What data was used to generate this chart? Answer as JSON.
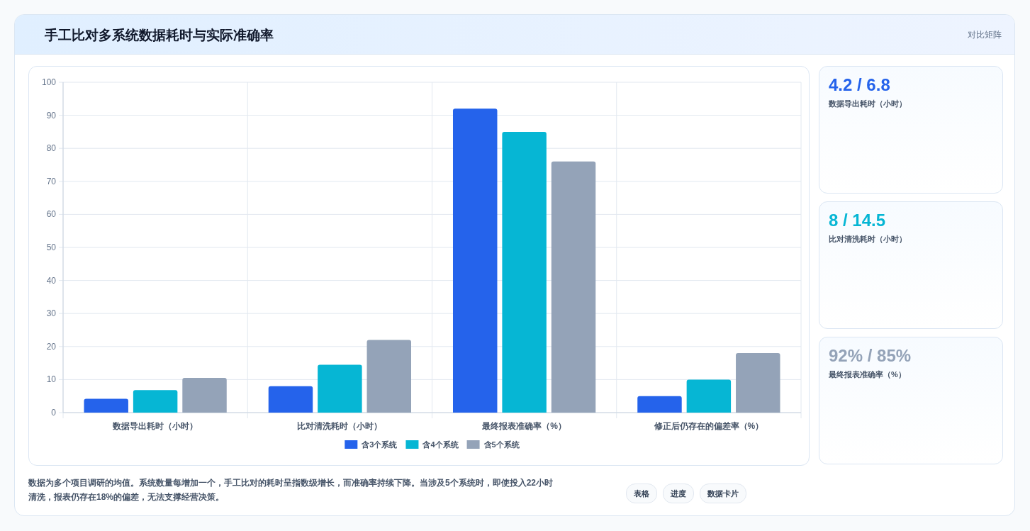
{
  "chart_data": [
    {
      "type": "bar",
      "title": "手工比对多系统数据耗时与实际准确率",
      "categories": [
        "数据导出耗时（小时）",
        "比对清洗耗时（小时）",
        "最终报表准确率（%）",
        "修正后仍存在的偏差率（%）"
      ],
      "series": [
        {
          "name": "含3个系统",
          "color": "#2563eb",
          "values": [
            4.2,
            8,
            92,
            5
          ]
        },
        {
          "name": "含4个系统",
          "color": "#06b6d4",
          "values": [
            6.8,
            14.5,
            85,
            10
          ]
        },
        {
          "name": "含5个系统",
          "color": "#94a3b8",
          "values": [
            10.5,
            22,
            76,
            18
          ]
        }
      ],
      "ylim": [
        0,
        100
      ],
      "yticks": [
        0,
        10,
        20,
        30,
        40,
        50,
        60,
        70,
        80,
        90,
        100
      ],
      "grid": true,
      "legend": "bottom",
      "annotations": [
        "对比矩阵",
        "数据为多个项目调研的均值。系统数量每增加一个，手工比对的耗时呈指数级增长，而准确率持续下降。当涉及5个系统时，即使投入22小时清洗，报表仍存在18%的偏差，无法支撑经营决策。",
        "表格",
        "进度",
        "数据卡片"
      ]
    },
    {
      "type": "other",
      "title": "4.2 / 6.8",
      "subtitle": "数据导出耗时（小时）",
      "color": "#2563eb"
    },
    {
      "type": "other",
      "title": "8 / 14.5",
      "subtitle": "比对清洗耗时（小时）",
      "color": "#06b6d4"
    },
    {
      "type": "other",
      "title": "92% / 85%",
      "subtitle": "最终报表准确率（%）",
      "color": "#94a3b8"
    }
  ]
}
